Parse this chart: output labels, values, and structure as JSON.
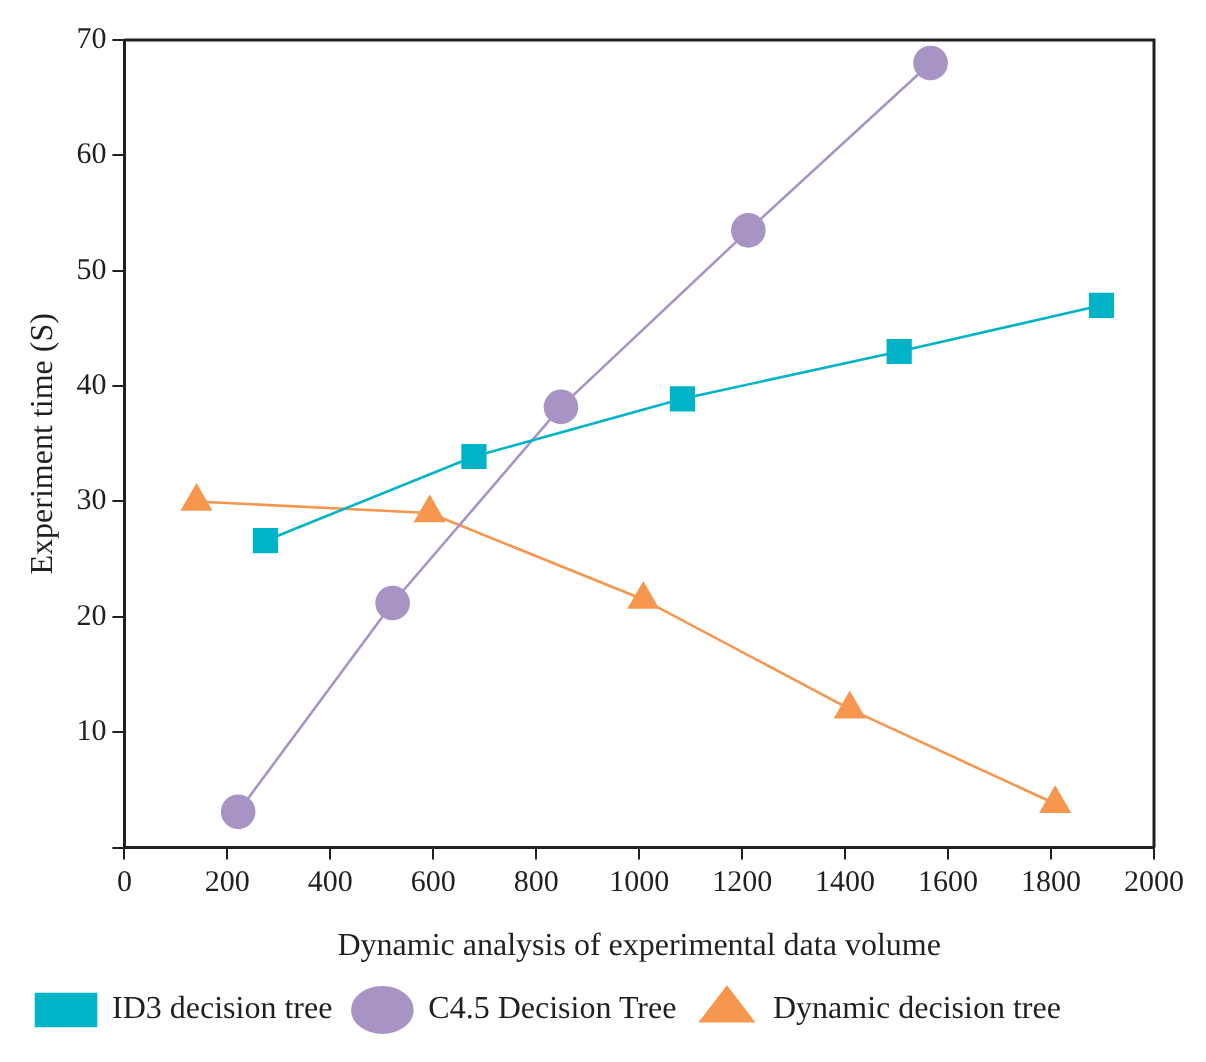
{
  "chart_data": {
    "type": "line",
    "xlabel": "Dynamic analysis of experimental data volume",
    "ylabel": "Experiment time (S)",
    "xlim": [
      0,
      2000
    ],
    "xticks": [
      0,
      200,
      400,
      600,
      800,
      1000,
      1200,
      1400,
      1600,
      1800,
      2000
    ],
    "ylim": [
      0,
      70
    ],
    "yticks": [
      {
        "value": 0,
        "label": null
      },
      10,
      20,
      30,
      40,
      50,
      60,
      70
    ],
    "grid": false,
    "legend": "bottom left",
    "series": [
      {
        "name": "ID3 decision tree",
        "color": "#00b3c6",
        "marker": "square",
        "x": [
          274,
          679,
          1084,
          1505,
          1898
        ],
        "values": [
          26.6,
          33.9,
          38.9,
          43,
          47
        ]
      },
      {
        "name": "C4.5 Decision Tree",
        "color": "#a894c4",
        "marker": "circle",
        "x": [
          221,
          521,
          848,
          1212,
          1566
        ],
        "values": [
          3.1,
          21.2,
          38.2,
          53.5,
          68
        ]
      },
      {
        "name": "Dynamic decision tree",
        "color": "#f7964f",
        "marker": "triangle",
        "x": [
          140,
          593,
          1008,
          1409,
          1808
        ],
        "values": [
          30,
          29,
          21.5,
          12,
          3.8
        ]
      }
    ]
  }
}
